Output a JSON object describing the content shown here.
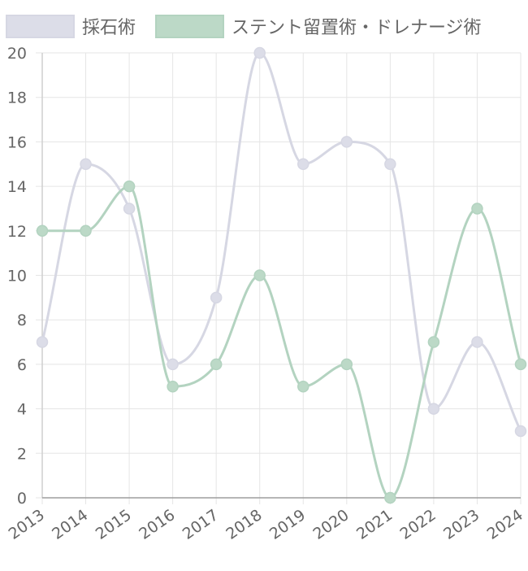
{
  "chart_data": {
    "type": "line",
    "smooth": true,
    "categories": [
      "2013",
      "2014",
      "2015",
      "2016",
      "2017",
      "2018",
      "2019",
      "2020",
      "2021",
      "2022",
      "2023",
      "2024"
    ],
    "series": [
      {
        "name": "採石術",
        "values": [
          7,
          15,
          13,
          6,
          9,
          20,
          15,
          16,
          15,
          4,
          7,
          3
        ],
        "color": "#d6d7e3",
        "fill_color": "#dcdde8"
      },
      {
        "name": "ステント留置術・ドレナージ術",
        "values": [
          12,
          12,
          14,
          5,
          6,
          10,
          5,
          6,
          0,
          7,
          13,
          6
        ],
        "color": "#b3d3c0",
        "fill_color": "#bcd9c7"
      }
    ],
    "yticks": [
      "0",
      "2",
      "4",
      "6",
      "8",
      "10",
      "12",
      "14",
      "16",
      "18",
      "20"
    ],
    "ylim": [
      0,
      20
    ],
    "grid": true,
    "legend_position": "top",
    "xlabel": "",
    "ylabel": "",
    "title": ""
  }
}
